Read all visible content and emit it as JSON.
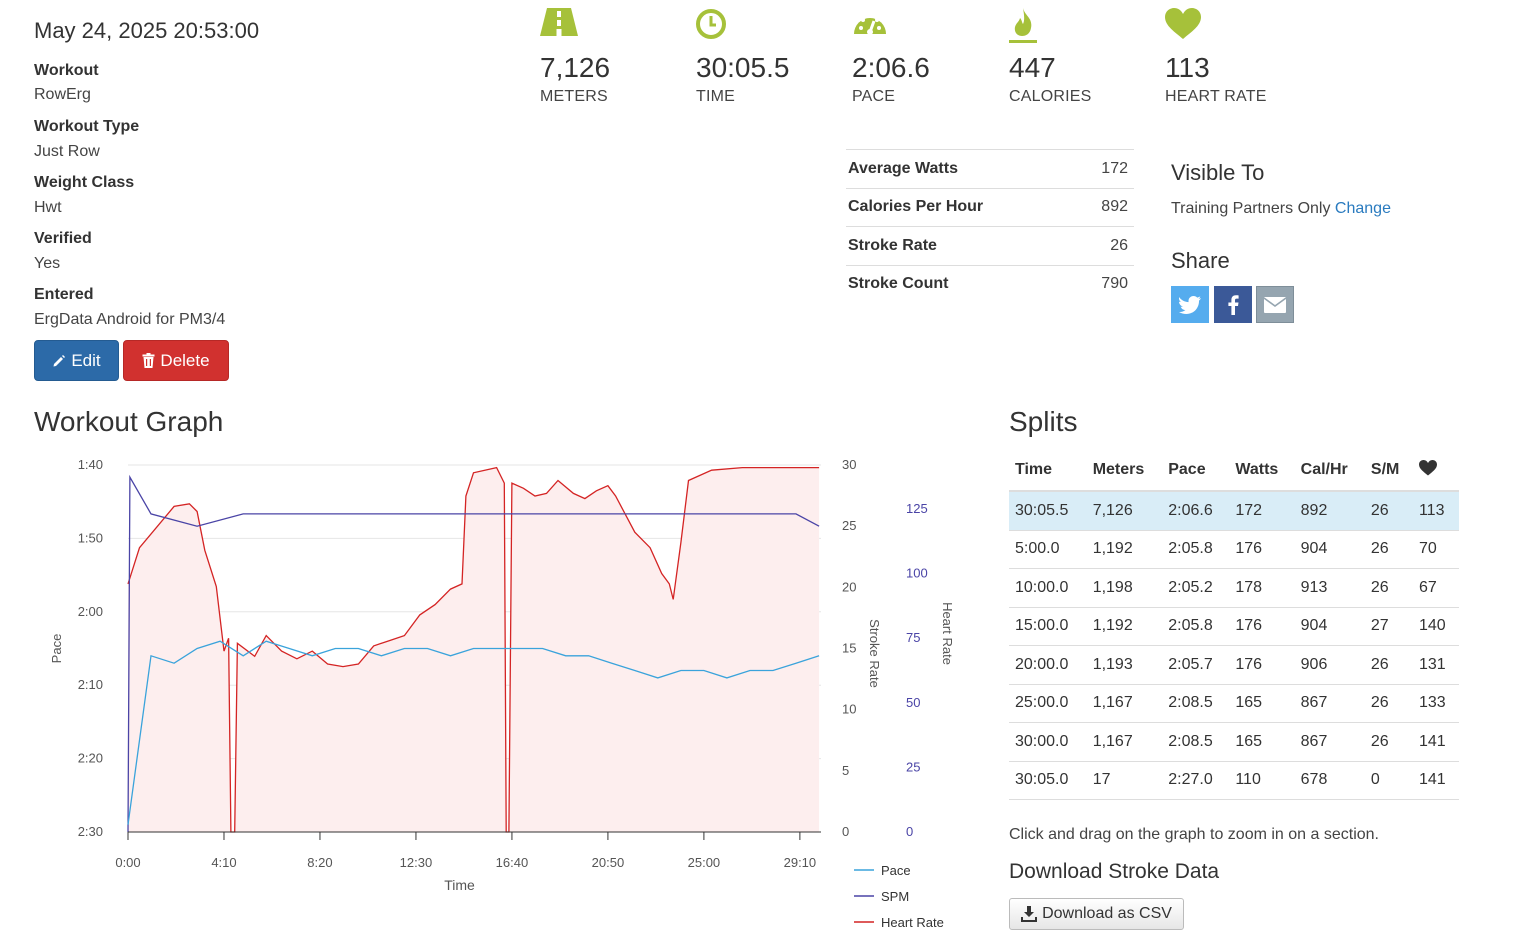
{
  "workout": {
    "date": "May 24, 2025 20:53:00",
    "fields": [
      {
        "label": "Workout",
        "value": "RowErg"
      },
      {
        "label": "Workout Type",
        "value": "Just Row"
      },
      {
        "label": "Weight Class",
        "value": "Hwt"
      },
      {
        "label": "Verified",
        "value": "Yes"
      },
      {
        "label": "Entered",
        "value": "ErgData Android for PM3/4"
      }
    ],
    "edit_label": "Edit",
    "delete_label": "Delete"
  },
  "metrics": [
    {
      "icon": "road-icon",
      "value": "7,126",
      "label": "METERS"
    },
    {
      "icon": "clock-icon",
      "value": "30:05.5",
      "label": "TIME"
    },
    {
      "icon": "speedometer-icon",
      "value": "2:06.6",
      "label": "PACE"
    },
    {
      "icon": "flame-icon",
      "value": "447",
      "label": "CALORIES"
    },
    {
      "icon": "heart-icon",
      "value": "113",
      "label": "HEART RATE"
    }
  ],
  "accent_color": "#a6c13a",
  "stats": [
    {
      "label": "Average Watts",
      "value": "172"
    },
    {
      "label": "Calories Per Hour",
      "value": "892"
    },
    {
      "label": "Stroke Rate",
      "value": "26"
    },
    {
      "label": "Stroke Count",
      "value": "790"
    }
  ],
  "visibility": {
    "heading": "Visible To",
    "text": "Training Partners Only",
    "change_link": "Change"
  },
  "share": {
    "heading": "Share",
    "buttons": [
      {
        "icon": "twitter-icon",
        "color": "#55acee"
      },
      {
        "icon": "facebook-icon",
        "color": "#3b5998"
      },
      {
        "icon": "email-icon",
        "color": "#95a5b0"
      }
    ]
  },
  "graph": {
    "heading": "Workout Graph"
  },
  "chart_data": {
    "type": "line",
    "xlabel": "Time",
    "x_ticks": [
      "0:00",
      "4:10",
      "8:20",
      "12:30",
      "16:40",
      "20:50",
      "25:00",
      "29:10"
    ],
    "x_range_seconds": [
      0,
      1805
    ],
    "pace_axis": {
      "label": "Pace",
      "ticks": [
        "1:40",
        "1:50",
        "2:00",
        "2:10",
        "2:20",
        "2:30"
      ],
      "range": [
        "1:40",
        "2:30"
      ],
      "inverted": true
    },
    "stroke_rate_axis": {
      "label": "Stroke Rate",
      "ticks": [
        "0",
        "5",
        "10",
        "15",
        "20",
        "25",
        "30"
      ],
      "range": [
        0,
        30
      ]
    },
    "heart_rate_axis": {
      "label": "Heart Rate",
      "ticks": [
        "0",
        "25",
        "50",
        "75",
        "100",
        "125"
      ],
      "range": [
        0,
        142
      ]
    },
    "grid": true,
    "legend_position": "bottom",
    "series": [
      {
        "name": "Pace",
        "color": "#3aa3db",
        "unit": "seconds per 500m",
        "points": [
          [
            0,
            149
          ],
          [
            60,
            126
          ],
          [
            120,
            127
          ],
          [
            180,
            125
          ],
          [
            240,
            124
          ],
          [
            300,
            126
          ],
          [
            360,
            124
          ],
          [
            420,
            125
          ],
          [
            480,
            126
          ],
          [
            540,
            125
          ],
          [
            600,
            125
          ],
          [
            660,
            126
          ],
          [
            720,
            125
          ],
          [
            780,
            125
          ],
          [
            840,
            126
          ],
          [
            900,
            125
          ],
          [
            960,
            125
          ],
          [
            1020,
            125
          ],
          [
            1080,
            125
          ],
          [
            1140,
            126
          ],
          [
            1200,
            126
          ],
          [
            1260,
            127
          ],
          [
            1320,
            128
          ],
          [
            1380,
            129
          ],
          [
            1440,
            128
          ],
          [
            1500,
            128
          ],
          [
            1560,
            129
          ],
          [
            1620,
            128
          ],
          [
            1680,
            128
          ],
          [
            1740,
            127
          ],
          [
            1800,
            126
          ]
        ]
      },
      {
        "name": "SPM",
        "color": "#4a44a6",
        "unit": "strokes per minute",
        "points": [
          [
            0,
            0
          ],
          [
            5,
            29
          ],
          [
            60,
            26
          ],
          [
            180,
            25
          ],
          [
            300,
            26
          ],
          [
            420,
            26
          ],
          [
            540,
            26
          ],
          [
            660,
            26
          ],
          [
            780,
            26
          ],
          [
            900,
            26
          ],
          [
            1020,
            26
          ],
          [
            1140,
            26
          ],
          [
            1260,
            26
          ],
          [
            1380,
            26
          ],
          [
            1500,
            26
          ],
          [
            1620,
            26
          ],
          [
            1740,
            26
          ],
          [
            1800,
            25
          ]
        ]
      },
      {
        "name": "Heart Rate",
        "color": "#d42424",
        "unit": "bpm",
        "points": [
          [
            0,
            96
          ],
          [
            30,
            110
          ],
          [
            120,
            126
          ],
          [
            160,
            127
          ],
          [
            180,
            124
          ],
          [
            200,
            109
          ],
          [
            230,
            95
          ],
          [
            250,
            70
          ],
          [
            262,
            75
          ],
          [
            268,
            0
          ],
          [
            278,
            0
          ],
          [
            285,
            73
          ],
          [
            330,
            68
          ],
          [
            360,
            76
          ],
          [
            400,
            70
          ],
          [
            440,
            67
          ],
          [
            480,
            70
          ],
          [
            520,
            65
          ],
          [
            560,
            64
          ],
          [
            600,
            65
          ],
          [
            640,
            72
          ],
          [
            680,
            74
          ],
          [
            720,
            76
          ],
          [
            760,
            84
          ],
          [
            800,
            88
          ],
          [
            840,
            94
          ],
          [
            870,
            96
          ],
          [
            880,
            130
          ],
          [
            900,
            139
          ],
          [
            960,
            141
          ],
          [
            980,
            135
          ],
          [
            985,
            0
          ],
          [
            992,
            0
          ],
          [
            1000,
            135
          ],
          [
            1030,
            133
          ],
          [
            1060,
            130
          ],
          [
            1090,
            131
          ],
          [
            1120,
            136
          ],
          [
            1160,
            131
          ],
          [
            1190,
            129
          ],
          [
            1220,
            132
          ],
          [
            1250,
            134
          ],
          [
            1270,
            130
          ],
          [
            1320,
            116
          ],
          [
            1360,
            110
          ],
          [
            1390,
            100
          ],
          [
            1410,
            96
          ],
          [
            1420,
            90
          ],
          [
            1440,
            112
          ],
          [
            1460,
            136
          ],
          [
            1520,
            140
          ],
          [
            1600,
            141
          ],
          [
            1700,
            141
          ],
          [
            1800,
            141
          ]
        ]
      }
    ]
  },
  "splits": {
    "heading": "Splits",
    "columns": [
      "Time",
      "Meters",
      "Pace",
      "Watts",
      "Cal/Hr",
      "S/M"
    ],
    "heart_column_icon": "heart-icon",
    "rows": [
      [
        "30:05.5",
        "7,126",
        "2:06.6",
        "172",
        "892",
        "26",
        "113"
      ],
      [
        "5:00.0",
        "1,192",
        "2:05.8",
        "176",
        "904",
        "26",
        "70"
      ],
      [
        "10:00.0",
        "1,198",
        "2:05.2",
        "178",
        "913",
        "26",
        "67"
      ],
      [
        "15:00.0",
        "1,192",
        "2:05.8",
        "176",
        "904",
        "27",
        "140"
      ],
      [
        "20:00.0",
        "1,193",
        "2:05.7",
        "176",
        "906",
        "26",
        "131"
      ],
      [
        "25:00.0",
        "1,167",
        "2:08.5",
        "165",
        "867",
        "26",
        "133"
      ],
      [
        "30:00.0",
        "1,167",
        "2:08.5",
        "165",
        "867",
        "26",
        "141"
      ],
      [
        "30:05.0",
        "17",
        "2:27.0",
        "110",
        "678",
        "0",
        "141"
      ]
    ]
  },
  "hint": "Click and drag on the graph to zoom in on a section.",
  "download": {
    "heading": "Download Stroke Data",
    "button_label": "Download as CSV"
  }
}
